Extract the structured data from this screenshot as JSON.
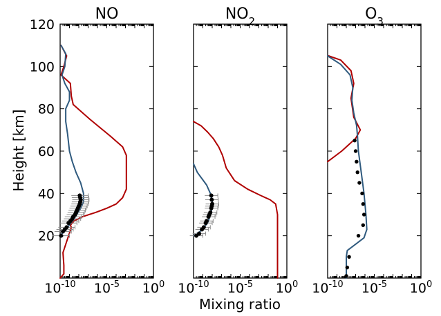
{
  "chart_data": [
    {
      "type": "line",
      "title": "NO",
      "xlabel": "Mixing ratio",
      "ylabel": "Height [km]",
      "xscale": "log",
      "xlim": [
        1e-10,
        1
      ],
      "ylim": [
        0,
        120
      ],
      "xticks": [
        {
          "exp": -10,
          "label": "10",
          "sup": "-10"
        },
        {
          "exp": -5,
          "label": "10",
          "sup": "-5"
        },
        {
          "exp": 0,
          "label": "10",
          "sup": "0"
        }
      ],
      "yticks": [
        {
          "v": 20,
          "label": "20"
        },
        {
          "v": 40,
          "label": "40"
        },
        {
          "v": 60,
          "label": "60"
        },
        {
          "v": 80,
          "label": "80"
        },
        {
          "v": 100,
          "label": "100"
        },
        {
          "v": 120,
          "label": "120"
        }
      ],
      "series": [
        {
          "color": "#b00000",
          "x_log10": [
            -10,
            -9.6,
            -9.6,
            -9.7,
            -9.1,
            -8.8,
            -8.9,
            -8.5,
            -7.6,
            -6.2,
            -5.0,
            -4.0,
            -3.3,
            -2.9,
            -2.9,
            -2.9,
            -3.3,
            -4.6,
            -6.8,
            -8.6,
            -8.8,
            -8.9,
            -9.9,
            -9.6,
            -9.3,
            -9.9
          ],
          "y": [
            0,
            2,
            6,
            12,
            20,
            24,
            25,
            27,
            29,
            31,
            33,
            35,
            38,
            42,
            50,
            58,
            62,
            67,
            75,
            82,
            86,
            92,
            96,
            100,
            105,
            110
          ]
        },
        {
          "color": "#2f5a7e",
          "x_log10": [
            -10,
            -9.2,
            -8.5,
            -7.8,
            -7.5,
            -7.5,
            -7.8,
            -8.3,
            -8.7,
            -9.0,
            -9.2,
            -9.4,
            -9.4,
            -9.0,
            -9.0,
            -9.5,
            -9.8,
            -9.5,
            -9.4,
            -9.9
          ],
          "y": [
            20,
            24,
            28,
            33,
            36,
            40,
            45,
            50,
            55,
            60,
            68,
            74,
            80,
            84,
            88,
            92,
            96,
            100,
            106,
            110
          ]
        }
      ],
      "observations": {
        "x_log10": [
          -9.9,
          -9.7,
          -9.5,
          -9.3,
          -9.1,
          -8.9,
          -8.7,
          -8.6,
          -8.4,
          -8.3,
          -8.2,
          -8.1,
          -8.0,
          -7.9,
          -7.85,
          -7.8,
          -7.85,
          -7.9
        ],
        "y": [
          20,
          22,
          23,
          24,
          26,
          27,
          28,
          29,
          30,
          31,
          32,
          33,
          34,
          35,
          36,
          37,
          38,
          39
        ],
        "err_log10": 0.9
      }
    },
    {
      "type": "line",
      "title": "NO",
      "title_sub": "2",
      "xscale": "log",
      "xlim": [
        1e-10,
        1
      ],
      "ylim": [
        0,
        120
      ],
      "xticks": [
        {
          "exp": -10,
          "label": "10",
          "sup": "-10"
        },
        {
          "exp": -5,
          "label": "10",
          "sup": "-5"
        },
        {
          "exp": 0,
          "label": "10",
          "sup": "0"
        }
      ],
      "series": [
        {
          "color": "#b00000",
          "x_log10": [
            -1.0,
            -1.0,
            -1.0,
            -1.0,
            -1.2,
            -1.8,
            -2.8,
            -4.2,
            -5.6,
            -6.5,
            -6.9,
            -7.3,
            -7.9,
            -8.5,
            -9.2,
            -10
          ],
          "y": [
            0,
            10,
            20,
            30,
            35,
            37,
            39,
            42,
            46,
            52,
            58,
            62,
            66,
            69,
            72,
            74
          ]
        },
        {
          "color": "#2f5a7e",
          "x_log10": [
            -10,
            -9.3,
            -8.5,
            -8.1,
            -8.0,
            -8.2,
            -8.6,
            -9.1,
            -9.6,
            -10
          ],
          "y": [
            20,
            22,
            26,
            31,
            36,
            40,
            44,
            47,
            50,
            54
          ]
        }
      ],
      "observations": {
        "x_log10": [
          -9.7,
          -9.4,
          -9.1,
          -8.9,
          -8.7,
          -8.6,
          -8.4,
          -8.3,
          -8.2,
          -8.1,
          -8.05,
          -8.0,
          -8.05,
          -8.1
        ],
        "y": [
          20,
          21,
          23,
          24,
          26,
          27,
          29,
          30,
          31,
          33,
          34,
          35,
          37,
          39
        ],
        "err_log10": 0.7
      }
    },
    {
      "type": "line",
      "title": "O",
      "title_sub": "3",
      "xscale": "log",
      "xlim": [
        1e-10,
        1
      ],
      "ylim": [
        0,
        120
      ],
      "xticks": [
        {
          "exp": -10,
          "label": "10",
          "sup": "-10"
        },
        {
          "exp": -5,
          "label": "10",
          "sup": "-5"
        },
        {
          "exp": 0,
          "label": "10",
          "sup": "0"
        }
      ],
      "series": [
        {
          "color": "#b00000",
          "x_log10": [
            -10,
            -8.5,
            -7.0,
            -6.5,
            -7.2,
            -7.5,
            -7.2,
            -7.5,
            -8.6,
            -9.9
          ],
          "y": [
            55,
            60,
            66,
            70,
            76,
            85,
            92,
            98,
            103,
            105
          ]
        },
        {
          "color": "#2f5a7e",
          "x_log10": [
            -8.0,
            -8.0,
            -8.0,
            -7.9,
            -7.0,
            -6.1,
            -5.8,
            -5.9,
            -6.1,
            -6.4,
            -6.7,
            -6.8,
            -6.9,
            -7.2,
            -7.4,
            -7.3,
            -7.6,
            -8.6,
            -10
          ],
          "y": [
            0,
            5,
            10,
            13,
            16,
            19,
            23,
            30,
            40,
            50,
            60,
            67,
            72,
            78,
            84,
            90,
            96,
            101,
            105
          ]
        }
      ],
      "observations": {
        "x_log10": [
          -8.0,
          -7.9,
          -7.7,
          -6.7,
          -6.2,
          -6.1,
          -6.2,
          -6.3,
          -6.6,
          -6.8,
          -6.9,
          -7.0,
          -7.1
        ],
        "y": [
          1,
          5,
          10,
          20,
          25,
          30,
          35,
          40,
          45,
          50,
          55,
          60,
          65
        ]
      }
    }
  ]
}
